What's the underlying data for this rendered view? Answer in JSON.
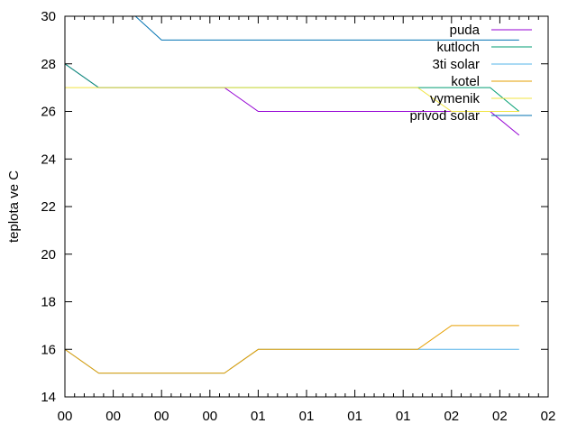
{
  "chart_data": {
    "type": "line",
    "ylabel": "teplota ve C",
    "xlabel": "",
    "title": "",
    "ylim": [
      14,
      30
    ],
    "yticks": [
      14,
      16,
      18,
      20,
      22,
      24,
      26,
      28,
      30
    ],
    "xlim": [
      0,
      20
    ],
    "xtick_labels": [
      "00",
      "00",
      "00",
      "00",
      "01",
      "01",
      "01",
      "01",
      "02",
      "02",
      "02"
    ],
    "grid": false,
    "legend_position": "top-right",
    "series": [
      {
        "name": "puda",
        "color": "#9400d3",
        "x": [
          0,
          1.4,
          6.6,
          8,
          14.6,
          17.6,
          18.8
        ],
        "y": [
          28,
          27,
          27,
          26,
          26,
          26,
          25
        ]
      },
      {
        "name": "kutloch",
        "color": "#009e73",
        "x": [
          0,
          1.4,
          6.6,
          8,
          14.6,
          17.6,
          18.8
        ],
        "y": [
          28,
          27,
          27,
          27,
          27,
          27,
          26
        ]
      },
      {
        "name": "3ti solar",
        "color": "#56b4e9",
        "x": [
          0,
          1.4,
          6.6,
          8,
          14.6,
          18.8
        ],
        "y": [
          16,
          15,
          15,
          16,
          16,
          16
        ]
      },
      {
        "name": "kotel",
        "color": "#e69f00",
        "x": [
          0,
          1.4,
          6.6,
          8,
          14.6,
          16,
          18.8
        ],
        "y": [
          16,
          15,
          15,
          16,
          16,
          17,
          17
        ]
      },
      {
        "name": "vymenik",
        "color": "#f0e442",
        "x": [
          0,
          1.4,
          14.6,
          16,
          18.8
        ],
        "y": [
          27,
          27,
          27,
          26,
          26
        ]
      },
      {
        "name": "privod solar",
        "color": "#0072b2",
        "x": [
          2.7,
          4,
          18.8
        ],
        "y": [
          30.2,
          29,
          29
        ]
      }
    ]
  }
}
